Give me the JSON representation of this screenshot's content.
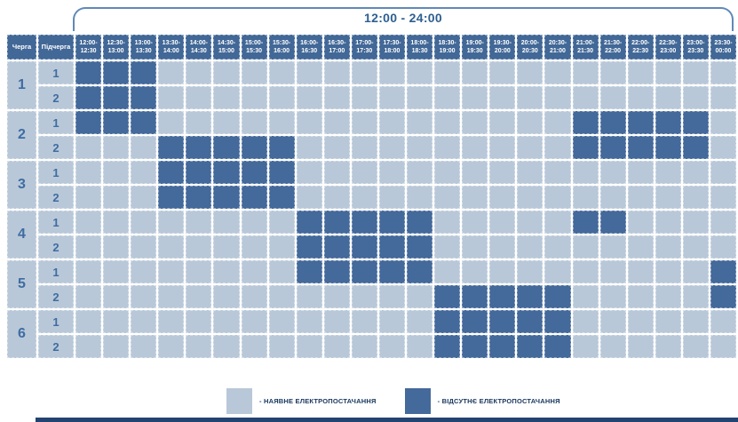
{
  "table": {
    "corner_headers": [
      "Черга",
      "Підчерга"
    ]
  },
  "legend": {
    "items": [
      {
        "key": "available",
        "label": "- НАЯВНЕ ЕЛЕКТРОПОСТАЧАННЯ",
        "color": "#B9C8D8"
      },
      {
        "key": "outage",
        "label": "- ВІДСУТНЄ ЕЛЕКТРОПОСТАЧАННЯ",
        "color": "#44699B"
      }
    ]
  },
  "colors": {
    "outage": "#44699B",
    "available": "#B9C8D8",
    "header_bg": "#426897",
    "label_text": "#3E6CA3",
    "bracket_line": "#6089B8",
    "bracket_text": "#2E5F90",
    "legend_text": "#17365D",
    "footer_bar": "#234370"
  },
  "chart_data": {
    "type": "heatmap",
    "title": "12:00 - 24:00",
    "x_labels": [
      "12:00-12:30",
      "12:30-13:00",
      "13:00-13:30",
      "13:30-14:00",
      "14:00-14:30",
      "14:30-15:00",
      "15:00-15:30",
      "15:30-16:00",
      "16:00-16:30",
      "16:30-17:00",
      "17:00-17:30",
      "17:30-18:00",
      "18:00-18:30",
      "18:30-19:00",
      "19:00-19:30",
      "19:30-20:00",
      "20:00-20:30",
      "20:30-21:00",
      "21:00-21:30",
      "21:30-22:00",
      "22:00-22:30",
      "22:30-23:00",
      "23:00-23:30",
      "23:30-00:00"
    ],
    "cell_values": {
      "0": "НАЯВНЕ ЕЛЕКТРОПОСТАЧАННЯ",
      "1": "ВІДСУТНЄ ЕЛЕКТРОПОСТАЧАННЯ"
    },
    "rows": [
      {
        "queue": "1",
        "subqueue": "1",
        "cells": [
          1,
          1,
          1,
          0,
          0,
          0,
          0,
          0,
          0,
          0,
          0,
          0,
          0,
          0,
          0,
          0,
          0,
          0,
          0,
          0,
          0,
          0,
          0,
          0
        ]
      },
      {
        "queue": "1",
        "subqueue": "2",
        "cells": [
          1,
          1,
          1,
          0,
          0,
          0,
          0,
          0,
          0,
          0,
          0,
          0,
          0,
          0,
          0,
          0,
          0,
          0,
          0,
          0,
          0,
          0,
          0,
          0
        ]
      },
      {
        "queue": "2",
        "subqueue": "1",
        "cells": [
          1,
          1,
          1,
          0,
          0,
          0,
          0,
          0,
          0,
          0,
          0,
          0,
          0,
          0,
          0,
          0,
          0,
          0,
          1,
          1,
          1,
          1,
          1,
          0
        ]
      },
      {
        "queue": "2",
        "subqueue": "2",
        "cells": [
          0,
          0,
          0,
          1,
          1,
          1,
          1,
          1,
          0,
          0,
          0,
          0,
          0,
          0,
          0,
          0,
          0,
          0,
          1,
          1,
          1,
          1,
          1,
          0
        ]
      },
      {
        "queue": "3",
        "subqueue": "1",
        "cells": [
          0,
          0,
          0,
          1,
          1,
          1,
          1,
          1,
          0,
          0,
          0,
          0,
          0,
          0,
          0,
          0,
          0,
          0,
          0,
          0,
          0,
          0,
          0,
          0
        ]
      },
      {
        "queue": "3",
        "subqueue": "2",
        "cells": [
          0,
          0,
          0,
          1,
          1,
          1,
          1,
          1,
          0,
          0,
          0,
          0,
          0,
          0,
          0,
          0,
          0,
          0,
          0,
          0,
          0,
          0,
          0,
          0
        ]
      },
      {
        "queue": "4",
        "subqueue": "1",
        "cells": [
          0,
          0,
          0,
          0,
          0,
          0,
          0,
          0,
          1,
          1,
          1,
          1,
          1,
          0,
          0,
          0,
          0,
          0,
          1,
          1,
          0,
          0,
          0,
          0
        ]
      },
      {
        "queue": "4",
        "subqueue": "2",
        "cells": [
          0,
          0,
          0,
          0,
          0,
          0,
          0,
          0,
          1,
          1,
          1,
          1,
          1,
          0,
          0,
          0,
          0,
          0,
          0,
          0,
          0,
          0,
          0,
          0
        ]
      },
      {
        "queue": "5",
        "subqueue": "1",
        "cells": [
          0,
          0,
          0,
          0,
          0,
          0,
          0,
          0,
          1,
          1,
          1,
          1,
          1,
          0,
          0,
          0,
          0,
          0,
          0,
          0,
          0,
          0,
          0,
          1
        ]
      },
      {
        "queue": "5",
        "subqueue": "2",
        "cells": [
          0,
          0,
          0,
          0,
          0,
          0,
          0,
          0,
          0,
          0,
          0,
          0,
          0,
          1,
          1,
          1,
          1,
          1,
          0,
          0,
          0,
          0,
          0,
          1
        ]
      },
      {
        "queue": "6",
        "subqueue": "1",
        "cells": [
          0,
          0,
          0,
          0,
          0,
          0,
          0,
          0,
          0,
          0,
          0,
          0,
          0,
          1,
          1,
          1,
          1,
          1,
          0,
          0,
          0,
          0,
          0,
          0
        ]
      },
      {
        "queue": "6",
        "subqueue": "2",
        "cells": [
          0,
          0,
          0,
          0,
          0,
          0,
          0,
          0,
          0,
          0,
          0,
          0,
          0,
          1,
          1,
          1,
          1,
          1,
          0,
          0,
          0,
          0,
          0,
          0
        ]
      }
    ]
  }
}
